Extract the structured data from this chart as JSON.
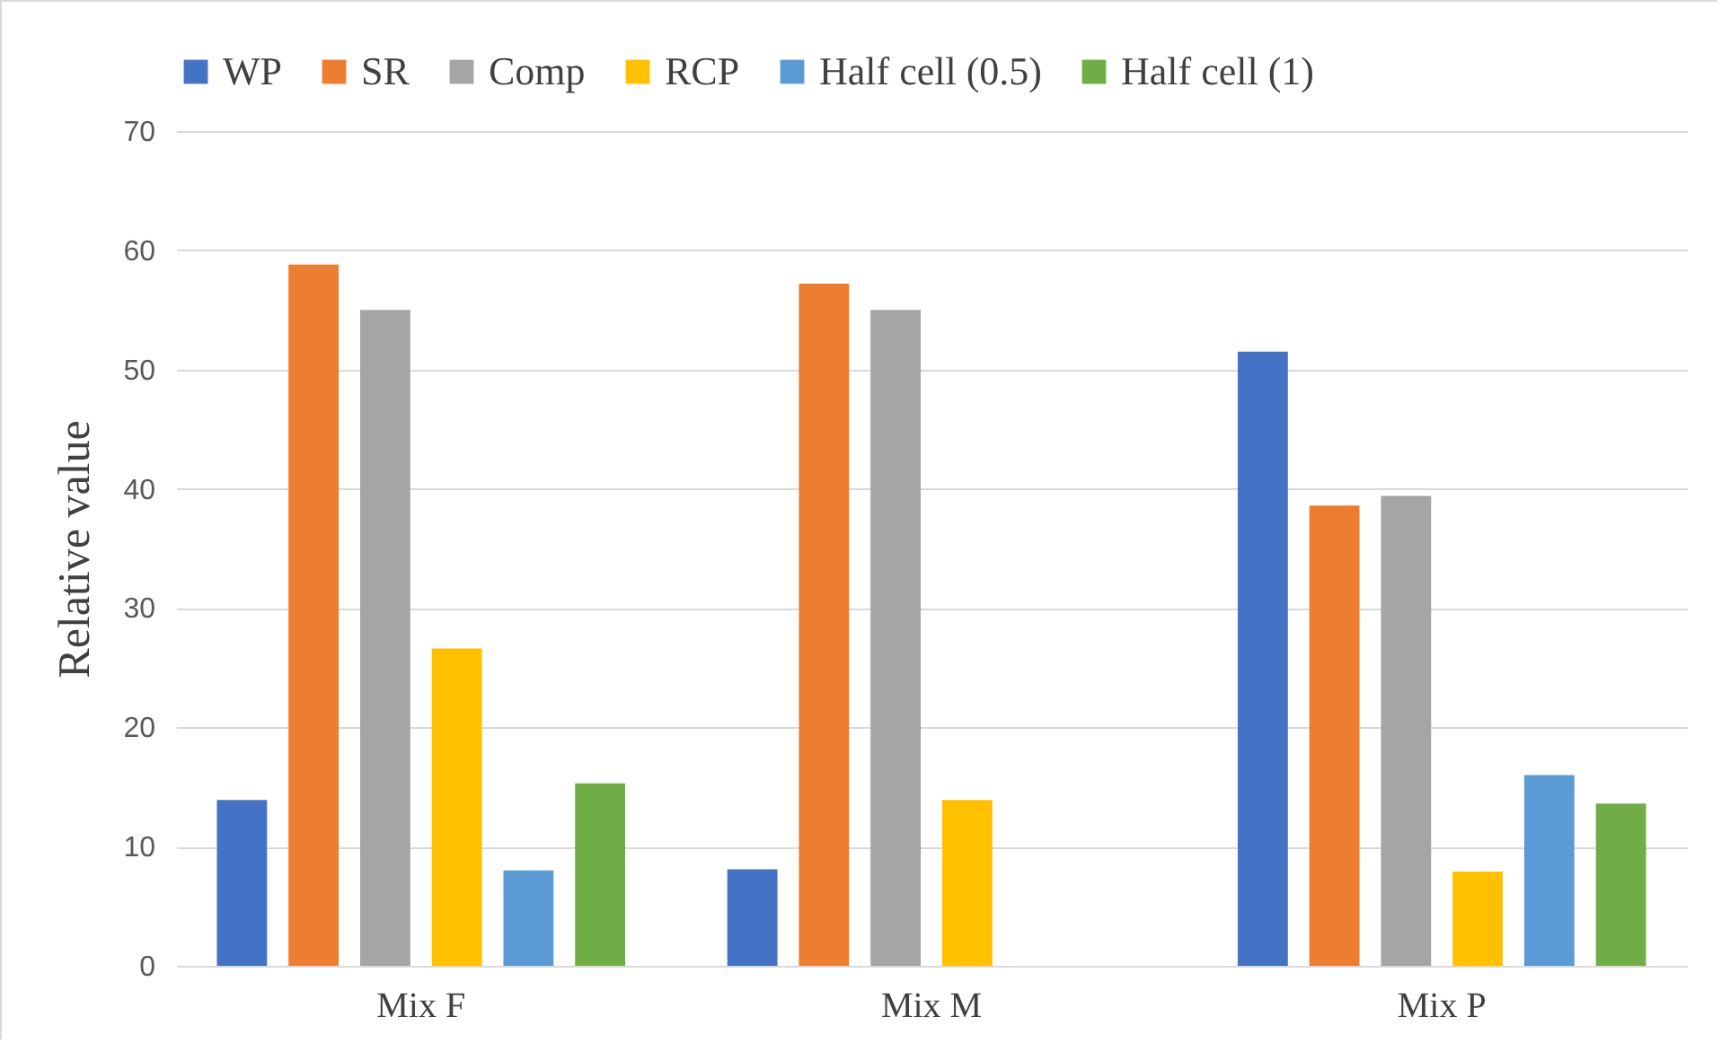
{
  "chart_data": {
    "type": "bar",
    "ylabel": "Relative value",
    "categories": [
      "Mix F",
      "Mix M",
      "Mix P"
    ],
    "series": [
      {
        "name": "WP",
        "color": "#4472c4",
        "values": [
          13.9,
          8.1,
          51.5
        ]
      },
      {
        "name": "SR",
        "color": "#ed7d31",
        "values": [
          58.8,
          57.2,
          38.6
        ]
      },
      {
        "name": "Comp",
        "color": "#a5a5a5",
        "values": [
          55.0,
          55.0,
          39.4
        ]
      },
      {
        "name": "RCP",
        "color": "#ffc000",
        "values": [
          26.6,
          13.9,
          7.9
        ]
      },
      {
        "name": "Half cell (0.5)",
        "color": "#5b9bd5",
        "values": [
          8.0,
          null,
          16.0
        ]
      },
      {
        "name": "Half cell (1)",
        "color": "#70ad47",
        "values": [
          15.3,
          null,
          13.6
        ]
      }
    ],
    "ylim": [
      0,
      70
    ],
    "yticks": [
      0,
      10,
      20,
      30,
      40,
      50,
      60,
      70
    ],
    "grid": "y",
    "legend": "top"
  }
}
